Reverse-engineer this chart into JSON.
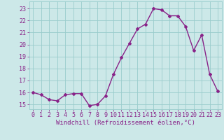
{
  "x": [
    0,
    1,
    2,
    3,
    4,
    5,
    6,
    7,
    8,
    9,
    10,
    11,
    12,
    13,
    14,
    15,
    16,
    17,
    18,
    19,
    20,
    21,
    22,
    23
  ],
  "y": [
    16.0,
    15.8,
    15.4,
    15.3,
    15.8,
    15.9,
    15.9,
    14.9,
    15.0,
    15.7,
    17.5,
    18.9,
    20.1,
    21.3,
    21.7,
    23.0,
    22.9,
    22.4,
    22.4,
    21.5,
    19.5,
    20.8,
    17.5,
    16.1
  ],
  "line_color": "#882288",
  "marker": "D",
  "marker_size": 2.0,
  "bg_color": "#cce8e8",
  "grid_color": "#99cccc",
  "xlabel": "Windchill (Refroidissement éolien,°C)",
  "xlabel_color": "#882288",
  "xlabel_fontsize": 6.5,
  "ytick_labels": [
    "15",
    "16",
    "17",
    "18",
    "19",
    "20",
    "21",
    "22",
    "23"
  ],
  "ytick_values": [
    15,
    16,
    17,
    18,
    19,
    20,
    21,
    22,
    23
  ],
  "xtick_labels": [
    "0",
    "1",
    "2",
    "3",
    "4",
    "5",
    "6",
    "7",
    "8",
    "9",
    "10",
    "11",
    "12",
    "13",
    "14",
    "15",
    "16",
    "17",
    "18",
    "19",
    "20",
    "21",
    "22",
    "23"
  ],
  "ylim": [
    14.6,
    23.6
  ],
  "xlim": [
    -0.5,
    23.5
  ],
  "tick_color": "#882288",
  "tick_fontsize": 6.0,
  "linewidth": 1.0
}
